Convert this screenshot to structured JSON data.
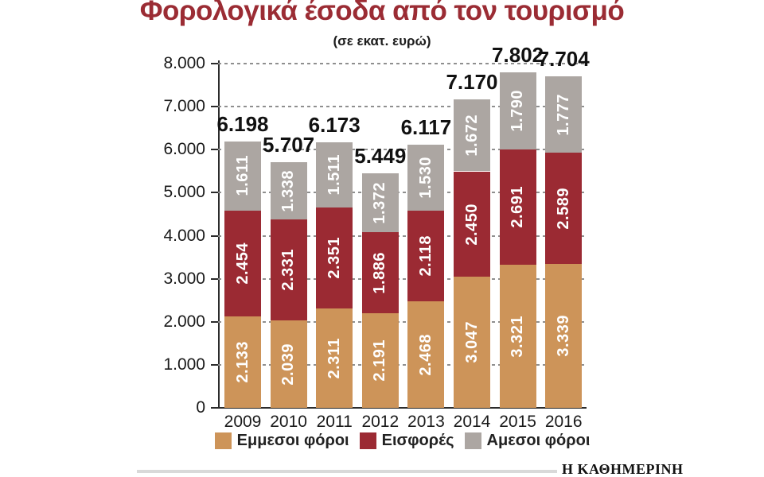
{
  "title": "Φορολογικά έσοδα από τον τουρισμό",
  "subtitle": "(σε εκατ. ευρώ)",
  "source_logo": "Η ΚΑΘΗΜΕΡΙΝΗ",
  "colors": {
    "title_accent": "#9b2c34",
    "axis": "#2b2b2b",
    "gridline": "#8f8f8f",
    "bar_value_label": "#ffffff",
    "total_label": "#111111",
    "footer_rule": "#d9d9d9"
  },
  "chart_data": {
    "type": "bar",
    "stacked": true,
    "title": "Φορολογικά έσοδα από τον τουρισμό",
    "units": "σε εκατ. ευρώ",
    "categories": [
      "2009",
      "2010",
      "2011",
      "2012",
      "2013",
      "2014",
      "2015",
      "2016"
    ],
    "series": [
      {
        "name": "Εμμεσοι φόροι",
        "color": "#cd9459",
        "values": [
          2133,
          2039,
          2311,
          2191,
          2468,
          3047,
          3321,
          3339
        ],
        "value_labels": [
          "2.133",
          "2.039",
          "2.311",
          "2.191",
          "2.468",
          "3.047",
          "3.321",
          "3.339"
        ]
      },
      {
        "name": "Εισφορές",
        "color": "#9b2a33",
        "values": [
          2454,
          2331,
          2351,
          1886,
          2118,
          2450,
          2691,
          2589
        ],
        "value_labels": [
          "2.454",
          "2.331",
          "2.351",
          "1.886",
          "2.118",
          "2.450",
          "2.691",
          "2.589"
        ]
      },
      {
        "name": "Αμεσοι φόροι",
        "color": "#aca6a2",
        "values": [
          1611,
          1338,
          1511,
          1372,
          1530,
          1672,
          1790,
          1777
        ],
        "value_labels": [
          "1.611",
          "1.338",
          "1.511",
          "1.372",
          "1.530",
          "1.672",
          "1.790",
          "1.777"
        ]
      }
    ],
    "totals": [
      6198,
      5707,
      6173,
      5449,
      6117,
      7170,
      7802,
      7704
    ],
    "total_labels": [
      "6.198",
      "5.707",
      "6.173",
      "5.449",
      "6.117",
      "7.170",
      "7.802",
      "7.704"
    ],
    "ylim": [
      0,
      8000
    ],
    "ytick_step": 1000,
    "ytick_labels": [
      "0",
      "1.000",
      "2.000",
      "3.000",
      "4.000",
      "5.000",
      "6.000",
      "7.000",
      "8.000"
    ],
    "grid": "horizontal-dashed",
    "legend_position": "bottom"
  }
}
